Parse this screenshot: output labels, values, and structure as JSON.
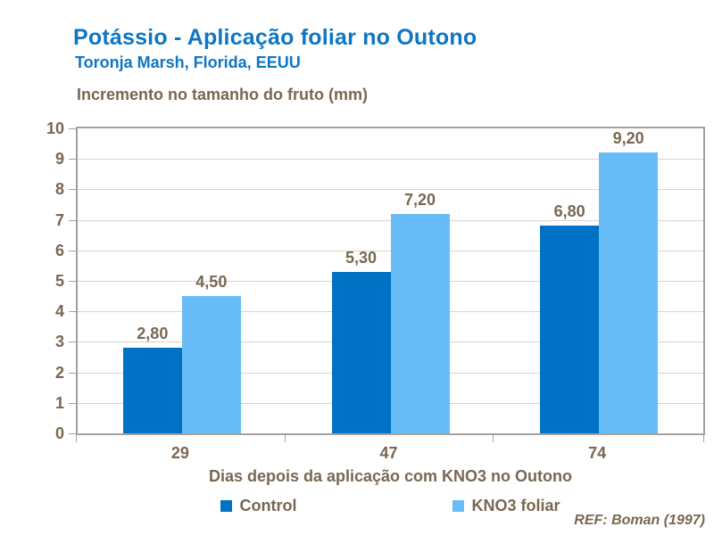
{
  "slide": {
    "title": "Potássio - Aplicação foliar no Outono",
    "subtitle": "Toronja Marsh, Florida, EEUU",
    "reference": "REF: Boman (1997)"
  },
  "colors": {
    "title_blue": "#0e76c4",
    "text_brown": "#786751",
    "plot_border": "#a8a098",
    "gridline": "#d9d4ce",
    "control_bar": "#0072c5",
    "kno3_bar": "#68bdf8",
    "background": "#ffffff"
  },
  "chart_data": {
    "type": "bar",
    "title": "Incremento no tamanho do fruto (mm)",
    "xlabel": "Dias depois da aplicação com KNO3 no Outono",
    "ylabel": "",
    "categories": [
      "29",
      "47",
      "74"
    ],
    "series": [
      {
        "name": "Control",
        "color": "#0072c5",
        "values": [
          2.8,
          5.3,
          6.8
        ],
        "labels": [
          "2,80",
          "5,30",
          "6,80"
        ]
      },
      {
        "name": "KNO3 foliar",
        "color": "#68bdf8",
        "values": [
          4.5,
          7.2,
          9.2
        ],
        "labels": [
          "4,50",
          "7,20",
          "9,20"
        ]
      }
    ],
    "ylim": [
      0,
      10
    ],
    "ytick_step": 1,
    "ytick_labels": [
      "0",
      "1",
      "2",
      "3",
      "4",
      "5",
      "6",
      "7",
      "8",
      "9",
      "10"
    ],
    "grid": true,
    "legend_position": "bottom"
  }
}
